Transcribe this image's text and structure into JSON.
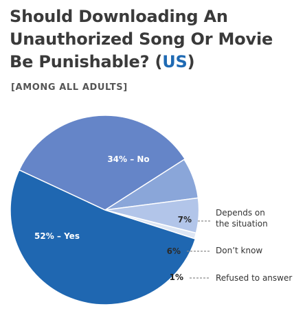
{
  "title": {
    "part1": "Should Downloading An",
    "part2": "Unauthorized Song Or Movie",
    "part3": "Be Punishable? (",
    "highlight": "US",
    "part4": ")"
  },
  "subtitle": "[AMONG ALL ADULTS]",
  "colors": {
    "yes": "#1f67b1",
    "no": "#6585c8",
    "depends": "#8aa6d9",
    "dont_know": "#b2c5e9",
    "refused": "#dde6f4",
    "leader": "#8a8a8a"
  },
  "chart_data": {
    "type": "pie",
    "slices": [
      {
        "key": "no",
        "value": 34,
        "pct_label": "34%",
        "name": "No"
      },
      {
        "key": "depends",
        "value": 7,
        "pct_label": "7%",
        "name": "Depends on the situation",
        "name_lines": [
          "Depends on",
          "the situation"
        ]
      },
      {
        "key": "dont_know",
        "value": 6,
        "pct_label": "6%",
        "name": "Don’t know"
      },
      {
        "key": "refused",
        "value": 1,
        "pct_label": "1%",
        "name": "Refused to answer"
      },
      {
        "key": "yes",
        "value": 52,
        "pct_label": "52%",
        "name": "Yes"
      }
    ],
    "inside_labels": {
      "no": "34% – No",
      "yes": "52% – Yes"
    }
  }
}
